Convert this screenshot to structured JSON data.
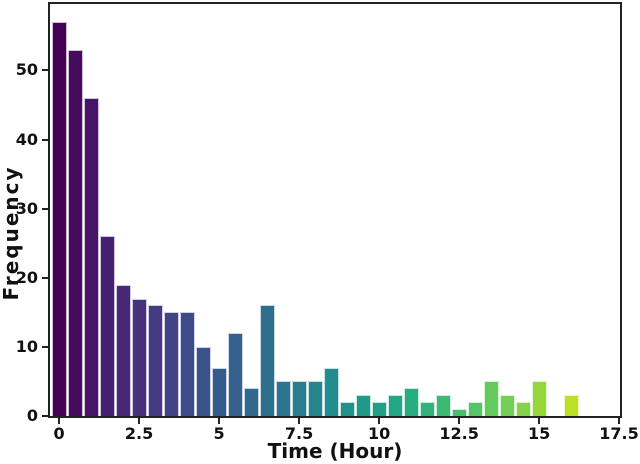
{
  "figure": {
    "background": "#ffffff",
    "axis_color": "#222222",
    "text_color": "#111111"
  },
  "chart_data": {
    "type": "bar",
    "subtype": "histogram",
    "title": "",
    "xlabel": "Time (Hour)",
    "ylabel": "Frequency",
    "colormap": "viridis",
    "grid": false,
    "legend": null,
    "categories": [
      0,
      0.5,
      1,
      1.5,
      2,
      2.5,
      3,
      3.5,
      4,
      4.5,
      5,
      5.5,
      6,
      6.5,
      7,
      7.5,
      8,
      8.5,
      9,
      9.5,
      10,
      10.5,
      11,
      11.5,
      12,
      12.5,
      13,
      13.5,
      14,
      14.5,
      15,
      15.5,
      16
    ],
    "values": [
      57,
      53,
      46,
      26,
      19,
      17,
      16,
      15,
      15,
      10,
      7,
      12,
      4,
      16,
      5,
      5,
      5,
      7,
      2,
      3,
      2,
      3,
      4,
      2,
      3,
      1,
      2,
      5,
      3,
      2,
      5,
      0,
      3
    ],
    "bar_colors": [
      "#440154",
      "#450b5d",
      "#461567",
      "#471f70",
      "#472877",
      "#45317c",
      "#433a81",
      "#414386",
      "#3e4b89",
      "#3b528a",
      "#375a8c",
      "#34618d",
      "#31688d",
      "#2e6f8e",
      "#2b768e",
      "#287d8e",
      "#26848d",
      "#238c8c",
      "#21928b",
      "#219989",
      "#229f87",
      "#22a685",
      "#28ac80",
      "#32b37b",
      "#3cb975",
      "#46c06f",
      "#55c566",
      "#64ca5e",
      "#73cf55",
      "#84d34a",
      "#97d73e",
      "#aadb32",
      "#bddf26"
    ],
    "bar_width_hours": 0.47,
    "xlim": [
      -0.285,
      17.53
    ],
    "ylim": [
      0,
      59.6
    ],
    "x_tick_values": [
      0,
      2.5,
      5,
      7.5,
      10,
      12.5,
      15,
      17.5
    ],
    "x_tick_labels": [
      "0",
      "2.5",
      "5",
      "7.5",
      "10",
      "12.5",
      "15",
      "17.5"
    ],
    "y_tick_values": [
      0,
      10,
      20,
      30,
      40,
      50
    ],
    "y_tick_labels": [
      "0",
      "10",
      "20",
      "30",
      "40",
      "50"
    ]
  }
}
